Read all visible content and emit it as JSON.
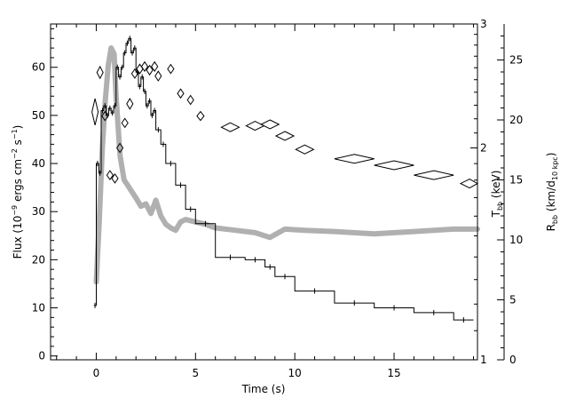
{
  "chart_data": {
    "type": "line",
    "xlabel": "Time (s)",
    "ylabel_left": {
      "pre": "Flux (10",
      "sup1": "−9",
      "mid": " ergs cm",
      "sup2": "−2",
      "mid2": " s",
      "sup3": "−1",
      "post": ")"
    },
    "ylabel_t": {
      "main": "T",
      "sub": "bb",
      "post": " (keV)"
    },
    "ylabel_r": {
      "main": "R",
      "sub1": "bb",
      "mid": " (km/d",
      "sub2": "10 kpc",
      "post": ")"
    },
    "xlim": [
      -2.3,
      19.2
    ],
    "ylim_flux": [
      -0.8,
      69
    ],
    "ylim_radius": [
      0,
      28
    ],
    "ylim_temperature": [
      1,
      3
    ],
    "temperature_log_scale": true,
    "x_ticks": [
      "0",
      "5",
      "10",
      "15"
    ],
    "flux_ticks": [
      "0",
      "10",
      "20",
      "30",
      "40",
      "50",
      "60"
    ],
    "radius_ticks": [
      "0",
      "5",
      "10",
      "15",
      "20",
      "25"
    ],
    "temperature_ticks": [
      "1",
      "2",
      "3"
    ],
    "series": [
      {
        "role": "flux",
        "style": "step",
        "color": "#000000",
        "bins": [
          [
            -0.125,
            0.0,
            10.5
          ],
          [
            0.0,
            0.125,
            40.0
          ],
          [
            0.125,
            0.25,
            38.0
          ],
          [
            0.25,
            0.375,
            51.0
          ],
          [
            0.375,
            0.5,
            52.0
          ],
          [
            0.5,
            0.625,
            50.0
          ],
          [
            0.625,
            0.75,
            51.5
          ],
          [
            0.75,
            0.875,
            50.5
          ],
          [
            0.875,
            1.0,
            52.0
          ],
          [
            1.0,
            1.125,
            60.0
          ],
          [
            1.125,
            1.25,
            58.0
          ],
          [
            1.25,
            1.375,
            60.0
          ],
          [
            1.375,
            1.5,
            63.0
          ],
          [
            1.5,
            1.625,
            65.0
          ],
          [
            1.625,
            1.75,
            66.0
          ],
          [
            1.75,
            1.875,
            63.0
          ],
          [
            1.875,
            2.0,
            64.0
          ],
          [
            2.0,
            2.125,
            59.0
          ],
          [
            2.125,
            2.25,
            56.0
          ],
          [
            2.25,
            2.375,
            58.0
          ],
          [
            2.375,
            2.5,
            55.0
          ],
          [
            2.5,
            2.625,
            52.0
          ],
          [
            2.625,
            2.75,
            53.0
          ],
          [
            2.75,
            2.875,
            50.0
          ],
          [
            2.875,
            3.0,
            51.0
          ],
          [
            3.0,
            3.25,
            47.0
          ],
          [
            3.25,
            3.5,
            44.0
          ],
          [
            3.5,
            4.0,
            40.0
          ],
          [
            4.0,
            4.5,
            35.5
          ],
          [
            4.5,
            5.0,
            30.5
          ],
          [
            5.0,
            6.0,
            27.5
          ],
          [
            6.0,
            7.5,
            20.5
          ],
          [
            7.5,
            8.5,
            20.0
          ],
          [
            8.5,
            9.0,
            18.5
          ],
          [
            9.0,
            10.0,
            16.5
          ],
          [
            10.0,
            12.0,
            13.5
          ],
          [
            12.0,
            14.0,
            11.0
          ],
          [
            14.0,
            16.0,
            10.0
          ],
          [
            16.0,
            18.0,
            9.0
          ],
          [
            18.0,
            19.0,
            7.5
          ]
        ]
      },
      {
        "role": "radius",
        "style": "band",
        "color": "#b0b0b0",
        "points": [
          [
            0.0,
            6.5
          ],
          [
            0.15,
            11.5
          ],
          [
            0.3,
            17.5
          ],
          [
            0.45,
            21.5
          ],
          [
            0.6,
            24.5
          ],
          [
            0.75,
            26.0
          ],
          [
            0.9,
            25.5
          ],
          [
            1.0,
            22.0
          ],
          [
            1.2,
            17.0
          ],
          [
            1.4,
            15.0
          ],
          [
            1.6,
            14.5
          ],
          [
            1.8,
            14.0
          ],
          [
            2.0,
            13.5
          ],
          [
            2.25,
            12.8
          ],
          [
            2.5,
            13.0
          ],
          [
            2.75,
            12.2
          ],
          [
            3.0,
            13.3
          ],
          [
            3.25,
            12.0
          ],
          [
            3.5,
            11.3
          ],
          [
            3.75,
            11.0
          ],
          [
            4.0,
            10.8
          ],
          [
            4.25,
            11.5
          ],
          [
            4.5,
            11.7
          ],
          [
            5.0,
            11.5
          ],
          [
            5.5,
            11.3
          ],
          [
            6.0,
            11.0
          ],
          [
            7.0,
            10.8
          ],
          [
            8.0,
            10.6
          ],
          [
            8.75,
            10.2
          ],
          [
            9.5,
            10.9
          ],
          [
            10.5,
            10.8
          ],
          [
            12.0,
            10.7
          ],
          [
            14.0,
            10.5
          ],
          [
            16.0,
            10.7
          ],
          [
            18.0,
            10.9
          ],
          [
            19.2,
            10.9
          ]
        ]
      },
      {
        "role": "temperature",
        "style": "diamonds",
        "color": "#000000",
        "points": [
          [
            -0.06,
            2.25,
            0.06,
            0.1
          ],
          [
            0.19,
            2.56,
            0.06,
            0.05
          ],
          [
            0.44,
            2.22,
            0.06,
            0.03
          ],
          [
            0.69,
            1.83,
            0.05,
            0.02
          ],
          [
            0.94,
            1.81,
            0.05,
            0.02
          ],
          [
            1.19,
            2.0,
            0.05,
            0.02
          ],
          [
            1.44,
            2.17,
            0.05,
            0.03
          ],
          [
            1.69,
            2.31,
            0.05,
            0.04
          ],
          [
            1.94,
            2.55,
            0.05,
            0.03
          ],
          [
            2.19,
            2.59,
            0.07,
            0.04
          ],
          [
            2.44,
            2.61,
            0.07,
            0.04
          ],
          [
            2.69,
            2.58,
            0.07,
            0.04
          ],
          [
            2.94,
            2.61,
            0.07,
            0.04
          ],
          [
            3.12,
            2.53,
            0.07,
            0.04
          ],
          [
            3.75,
            2.59,
            0.1,
            0.03
          ],
          [
            4.25,
            2.39,
            0.12,
            0.03
          ],
          [
            4.75,
            2.34,
            0.12,
            0.03
          ],
          [
            5.25,
            2.22,
            0.18,
            0.025
          ],
          [
            6.75,
            2.14,
            0.45,
            0.022
          ],
          [
            8.0,
            2.15,
            0.45,
            0.022
          ],
          [
            8.75,
            2.16,
            0.45,
            0.022
          ],
          [
            9.5,
            2.08,
            0.45,
            0.02
          ],
          [
            10.5,
            1.99,
            0.45,
            0.02
          ],
          [
            13.0,
            1.93,
            1.0,
            0.02
          ],
          [
            15.0,
            1.89,
            1.0,
            0.02
          ],
          [
            17.0,
            1.83,
            1.0,
            0.02
          ],
          [
            18.8,
            1.78,
            0.45,
            0.02
          ]
        ]
      }
    ]
  }
}
